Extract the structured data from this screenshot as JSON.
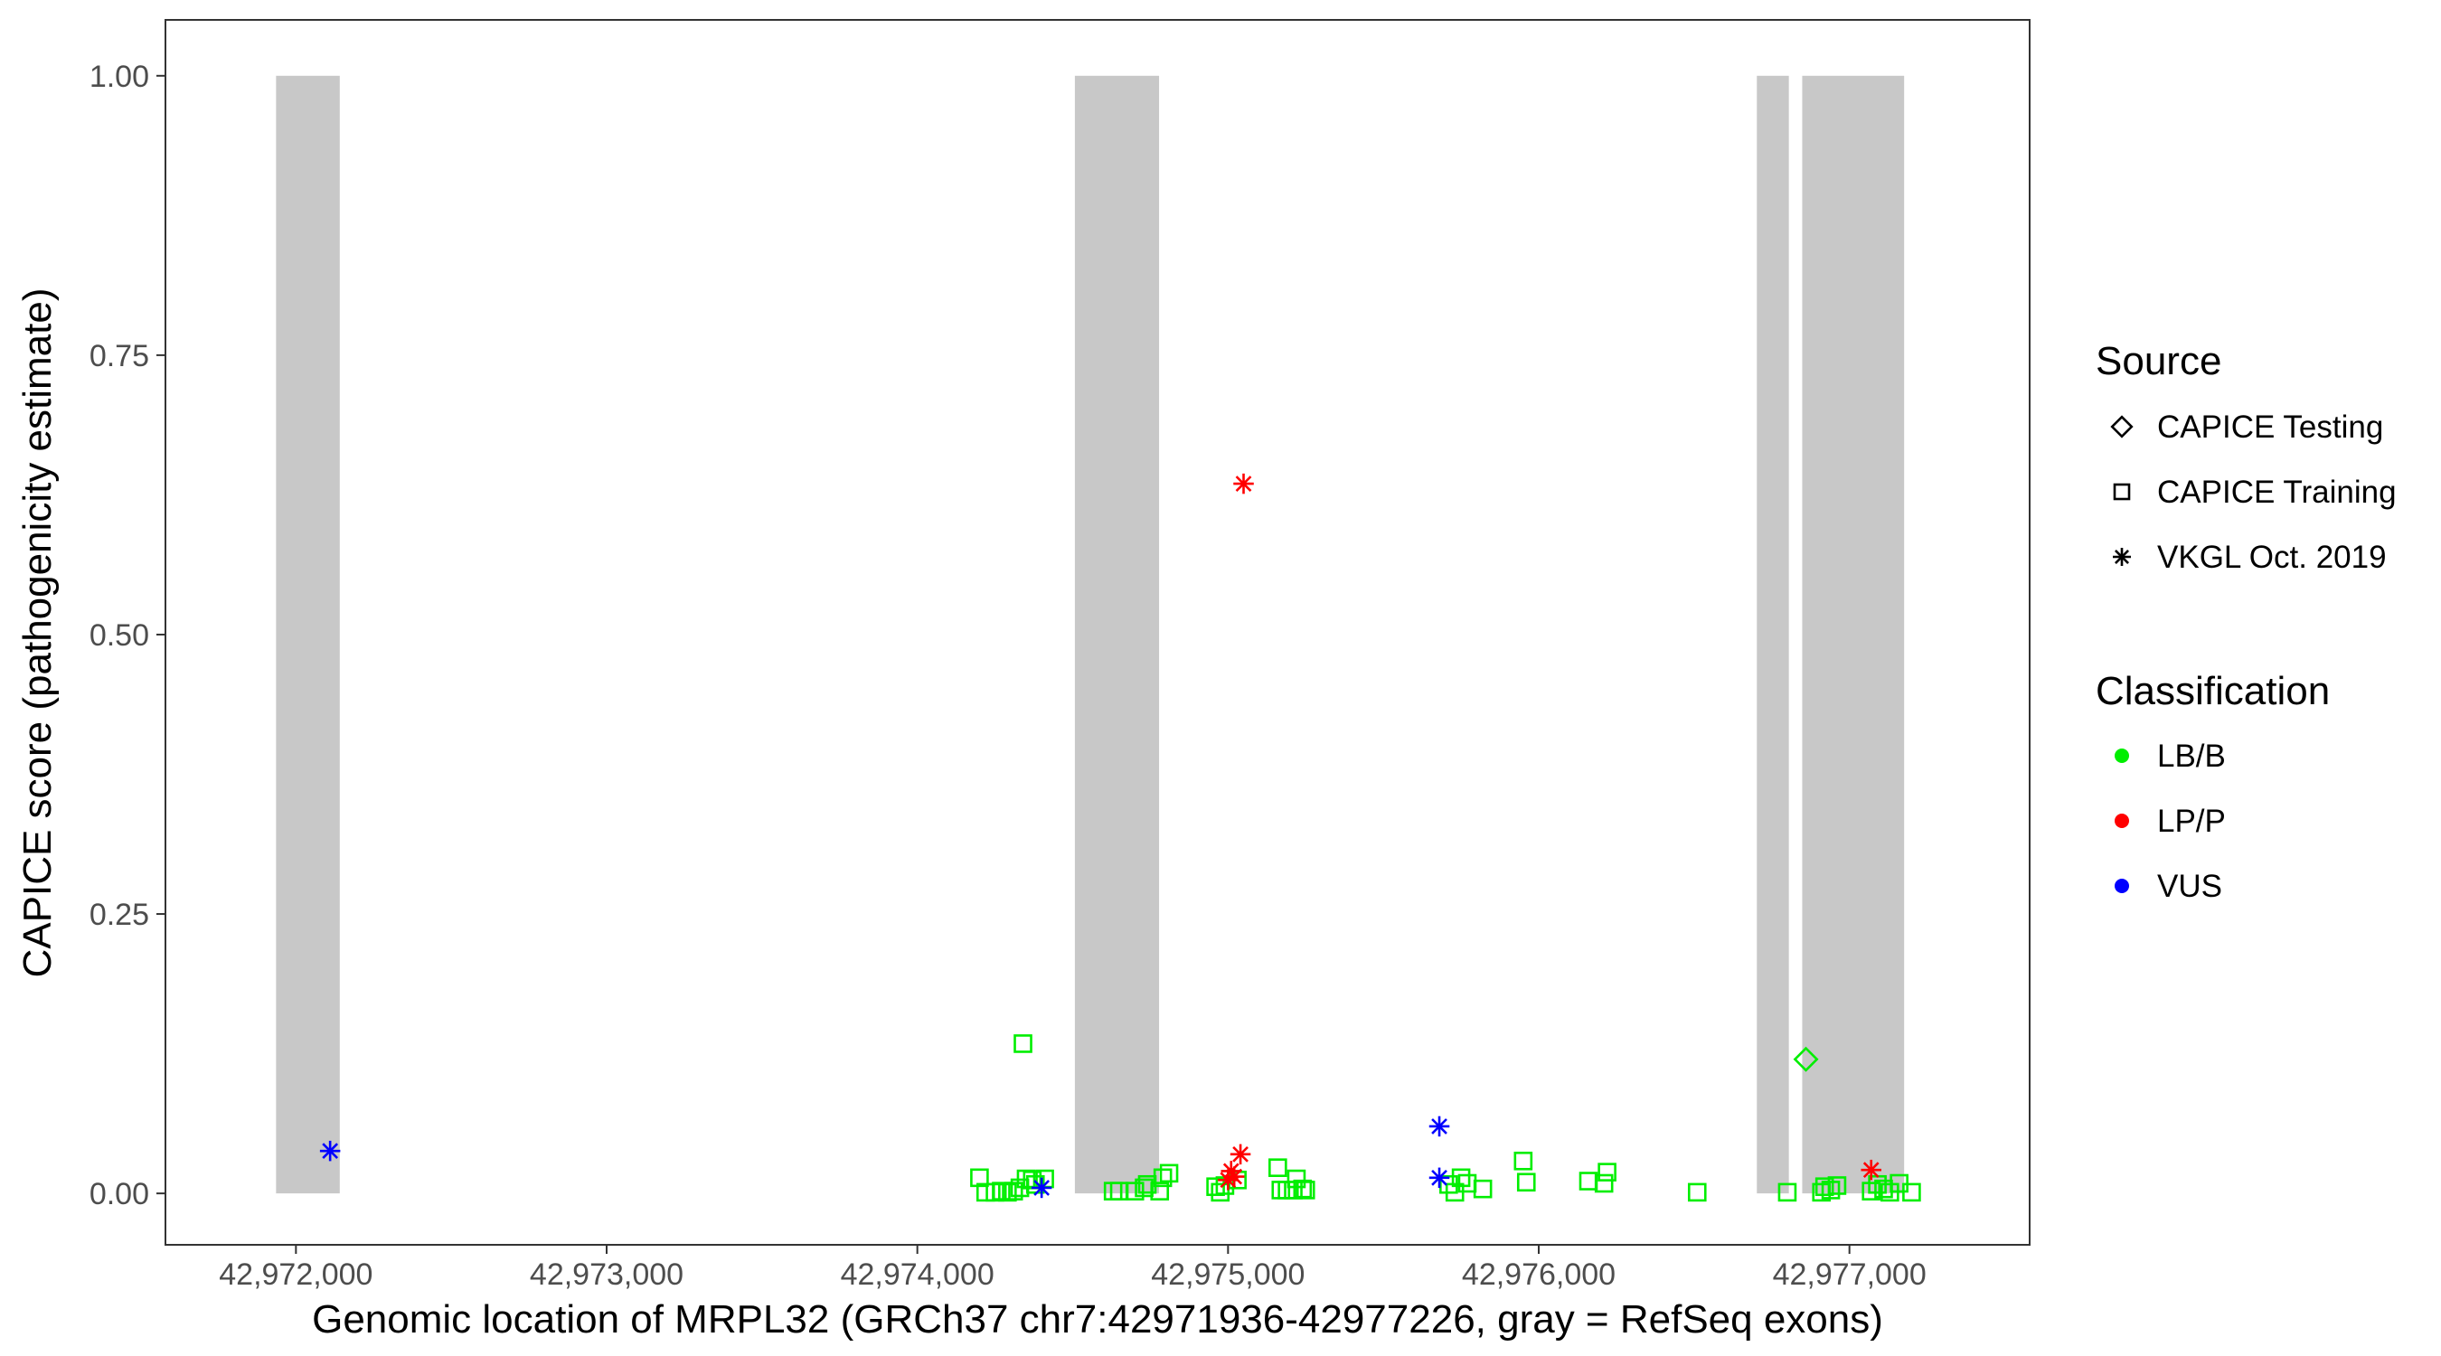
{
  "chart_data": {
    "type": "scatter",
    "title": "",
    "xlabel": "Genomic location of MRPL32 (GRCh37 chr7:42971936-42977226, gray = RefSeq exons)",
    "ylabel": "CAPICE score (pathogenicity estimate)",
    "xlim": [
      42971580,
      42977580
    ],
    "ylim": [
      -0.046,
      1.05
    ],
    "x_ticks": [
      42972000,
      42973000,
      42974000,
      42975000,
      42976000,
      42977000
    ],
    "x_tick_labels": [
      "42,972,000",
      "42,973,000",
      "42,974,000",
      "42,975,000",
      "42,976,000",
      "42,977,000"
    ],
    "y_ticks": [
      0,
      0.25,
      0.5,
      0.75,
      1.0
    ],
    "y_tick_labels": [
      "0.00",
      "0.25",
      "0.50",
      "0.75",
      "1.00"
    ],
    "grid": false,
    "exons": [
      {
        "start": 42971936,
        "end": 42972141
      },
      {
        "start": 42974507,
        "end": 42974778
      },
      {
        "start": 42976702,
        "end": 42976805
      },
      {
        "start": 42976848,
        "end": 42977176
      }
    ],
    "legend_position": "right",
    "legend": {
      "source_title": "Source",
      "source_items": [
        {
          "label": "CAPICE Testing",
          "shape": "diamond"
        },
        {
          "label": "CAPICE Training",
          "shape": "square"
        },
        {
          "label": "VKGL Oct. 2019",
          "shape": "asterisk"
        }
      ],
      "class_title": "Classification",
      "class_items": [
        {
          "label": "LB/B",
          "color": "#00ee00"
        },
        {
          "label": "LP/P",
          "color": "#ff0000"
        },
        {
          "label": "VUS",
          "color": "#0000ff"
        }
      ]
    },
    "colors": {
      "LB/B": "#00ee00",
      "LP/P": "#ff0000",
      "VUS": "#0000ff",
      "exon": "#c8c8c8"
    },
    "series": [
      {
        "name": "CAPICE Training",
        "shape": "square",
        "class": "LB/B",
        "points": [
          [
            42974200,
            0.014
          ],
          [
            42974220,
            0.001
          ],
          [
            42974250,
            0.001
          ],
          [
            42974270,
            0.002
          ],
          [
            42974290,
            0.001
          ],
          [
            42974310,
            0.002
          ],
          [
            42974330,
            0.005
          ],
          [
            42974340,
            0.134
          ],
          [
            42974350,
            0.013
          ],
          [
            42974370,
            0.012
          ],
          [
            42974380,
            0.008
          ],
          [
            42974410,
            0.013
          ],
          [
            42974630,
            0.002
          ],
          [
            42974650,
            0.002
          ],
          [
            42974700,
            0.002
          ],
          [
            42974730,
            0.005
          ],
          [
            42974740,
            0.008
          ],
          [
            42974780,
            0.002
          ],
          [
            42974790,
            0.014
          ],
          [
            42974810,
            0.018
          ],
          [
            42974960,
            0.006
          ],
          [
            42974975,
            0.001
          ],
          [
            42974990,
            0.007
          ],
          [
            42975030,
            0.012
          ],
          [
            42975160,
            0.023
          ],
          [
            42975170,
            0.003
          ],
          [
            42975190,
            0.003
          ],
          [
            42975210,
            0.003
          ],
          [
            42975220,
            0.013
          ],
          [
            42975240,
            0.004
          ],
          [
            42975250,
            0.003
          ],
          [
            42975710,
            0.008
          ],
          [
            42975730,
            0.001
          ],
          [
            42975750,
            0.014
          ],
          [
            42975770,
            0.009
          ],
          [
            42975820,
            0.004
          ],
          [
            42975950,
            0.029
          ],
          [
            42975960,
            0.01
          ],
          [
            42976160,
            0.011
          ],
          [
            42976210,
            0.009
          ],
          [
            42976220,
            0.019
          ],
          [
            42976510,
            0.001
          ],
          [
            42976800,
            0.001
          ],
          [
            42976910,
            0.001
          ],
          [
            42976920,
            0.006
          ],
          [
            42976940,
            0.003
          ],
          [
            42976960,
            0.007
          ],
          [
            42977070,
            0.002
          ],
          [
            42977090,
            0.008
          ],
          [
            42977110,
            0.004
          ],
          [
            42977130,
            0.001
          ],
          [
            42977160,
            0.009
          ],
          [
            42977200,
            0.001
          ]
        ]
      },
      {
        "name": "CAPICE Testing",
        "shape": "diamond",
        "class": "LB/B",
        "points": [
          [
            42976860,
            0.12
          ]
        ]
      },
      {
        "name": "VKGL Oct. 2019",
        "shape": "asterisk",
        "class": "LP/P",
        "points": [
          [
            42975050,
            0.635
          ],
          [
            42975040,
            0.035
          ],
          [
            42975010,
            0.02
          ],
          [
            42975000,
            0.012
          ],
          [
            42975020,
            0.015
          ],
          [
            42977070,
            0.021
          ]
        ]
      },
      {
        "name": "VKGL Oct. 2019",
        "shape": "asterisk",
        "class": "VUS",
        "points": [
          [
            42972110,
            0.038
          ],
          [
            42974400,
            0.005
          ],
          [
            42975680,
            0.06
          ],
          [
            42975680,
            0.014
          ]
        ]
      }
    ]
  }
}
